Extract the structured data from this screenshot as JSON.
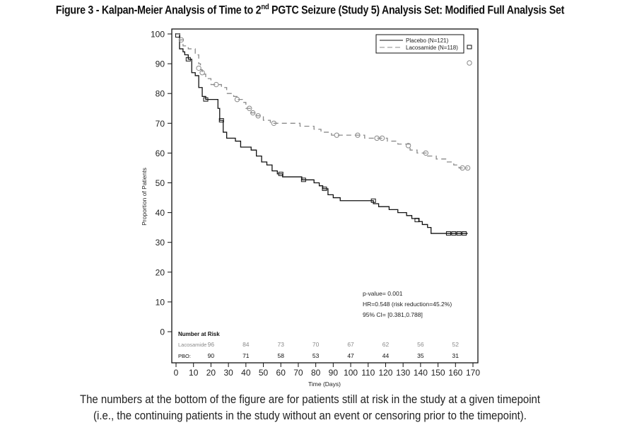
{
  "figure": {
    "title_prefix": "Figure 3 - Kalpan-Meier Analysis of Time to 2",
    "title_sup": "nd",
    "title_suffix": " PGTC Seizure (Study 5) Analysis Set: Modified Full Analysis Set",
    "caption_line1": "The numbers at the bottom of the figure are for patients still at risk in the study at a given timepoint",
    "caption_line2": "(i.e., the continuing patients in the study without an event or censoring prior to the timepoint)."
  },
  "chart_data": {
    "type": "line",
    "subtype": "kaplan-meier step",
    "title": "Kalpan-Meier Analysis of Time to 2nd PGTC Seizure (Study 5) Analysis Set: Modified Full Analysis Set",
    "xlabel": "Time (Days)",
    "ylabel": "Proportion of Patients",
    "xlim": [
      0,
      170
    ],
    "ylim": [
      0,
      100
    ],
    "xticks": [
      0,
      10,
      20,
      30,
      40,
      50,
      60,
      70,
      80,
      90,
      100,
      110,
      120,
      130,
      140,
      150,
      160,
      170
    ],
    "yticks": [
      0,
      10,
      20,
      30,
      40,
      50,
      60,
      70,
      80,
      90,
      100
    ],
    "grid": false,
    "legend_position": "top-right",
    "legend_censor_markers": {
      "Placebo": "square",
      "Lacosamide": "circle"
    },
    "series": [
      {
        "name": "Placebo (N=121)",
        "short": "Placebo",
        "color": "#111111",
        "dash": "solid",
        "censor_marker": "square",
        "steps": [
          [
            0,
            100
          ],
          [
            2,
            95
          ],
          [
            4,
            94
          ],
          [
            5,
            93
          ],
          [
            7,
            91.5
          ],
          [
            9,
            87
          ],
          [
            11,
            86
          ],
          [
            13,
            82
          ],
          [
            15,
            79
          ],
          [
            17,
            78
          ],
          [
            24,
            75
          ],
          [
            25,
            71
          ],
          [
            27,
            67
          ],
          [
            29,
            65
          ],
          [
            34,
            64
          ],
          [
            37,
            62
          ],
          [
            43,
            61
          ],
          [
            46,
            59
          ],
          [
            49,
            57
          ],
          [
            52,
            56
          ],
          [
            55,
            54
          ],
          [
            58,
            53
          ],
          [
            61,
            52
          ],
          [
            72,
            51
          ],
          [
            79,
            50
          ],
          [
            82,
            49
          ],
          [
            84,
            48
          ],
          [
            87,
            46
          ],
          [
            90,
            45
          ],
          [
            94,
            44
          ],
          [
            113,
            43
          ],
          [
            116,
            42
          ],
          [
            122,
            41
          ],
          [
            127,
            40
          ],
          [
            132,
            39
          ],
          [
            135,
            38
          ],
          [
            139,
            37
          ],
          [
            141,
            36
          ],
          [
            144,
            35
          ],
          [
            146,
            33
          ],
          [
            167,
            33
          ]
        ],
        "censored": [
          [
            1,
            99.5
          ],
          [
            7,
            91.5
          ],
          [
            17,
            78
          ],
          [
            26,
            71
          ],
          [
            60,
            53
          ],
          [
            73,
            51
          ],
          [
            85,
            48
          ],
          [
            113,
            44
          ],
          [
            138,
            37.5
          ],
          [
            156,
            33
          ],
          [
            159,
            33
          ],
          [
            162,
            33
          ],
          [
            165,
            33
          ]
        ]
      },
      {
        "name": "Lacosamide (N=118)",
        "short": "Lacosamide",
        "color": "#8a8a8a",
        "dash": "dashed",
        "censor_marker": "circle",
        "steps": [
          [
            0,
            100
          ],
          [
            2,
            98
          ],
          [
            4,
            96
          ],
          [
            7,
            95
          ],
          [
            11,
            93
          ],
          [
            13,
            90
          ],
          [
            14,
            88
          ],
          [
            15,
            86.5
          ],
          [
            17,
            85
          ],
          [
            20,
            83
          ],
          [
            26,
            82
          ],
          [
            29,
            80
          ],
          [
            33,
            79
          ],
          [
            35,
            78
          ],
          [
            38,
            77
          ],
          [
            40,
            75
          ],
          [
            43,
            73.5
          ],
          [
            46,
            72.5
          ],
          [
            50,
            71
          ],
          [
            54,
            70
          ],
          [
            71,
            69
          ],
          [
            79,
            68
          ],
          [
            83,
            67
          ],
          [
            89,
            66
          ],
          [
            108,
            65
          ],
          [
            121,
            64
          ],
          [
            127,
            63
          ],
          [
            134,
            61
          ],
          [
            138,
            60
          ],
          [
            144,
            59
          ],
          [
            149,
            58
          ],
          [
            155,
            57
          ],
          [
            159,
            56
          ],
          [
            162,
            55
          ],
          [
            167,
            55
          ]
        ],
        "censored": [
          [
            3,
            98
          ],
          [
            13,
            88.5
          ],
          [
            15,
            87
          ],
          [
            23,
            83
          ],
          [
            35,
            78
          ],
          [
            42,
            75
          ],
          [
            44,
            73.5
          ],
          [
            47,
            72.5
          ],
          [
            56,
            70
          ],
          [
            92,
            66
          ],
          [
            104,
            66
          ],
          [
            115,
            65
          ],
          [
            118,
            65
          ],
          [
            133,
            62.5
          ],
          [
            143,
            60
          ],
          [
            164,
            55
          ],
          [
            167,
            55
          ]
        ]
      }
    ],
    "annotations": [
      "p-value= 0.001",
      "HR=0.548 (risk reduction=45.2%)",
      "95% CI= [0.381,0.788]"
    ],
    "number_at_risk": {
      "header": "Number at Risk",
      "times": [
        20,
        40,
        60,
        80,
        100,
        120,
        140,
        160
      ],
      "rows": [
        {
          "label": "Lacosamide",
          "values": [
            96,
            84,
            73,
            70,
            67,
            62,
            56,
            52
          ],
          "color": "#8a8a8a"
        },
        {
          "label": "PBO:",
          "values": [
            90,
            71,
            58,
            53,
            47,
            44,
            35,
            31
          ],
          "color": "#111111"
        }
      ]
    }
  }
}
